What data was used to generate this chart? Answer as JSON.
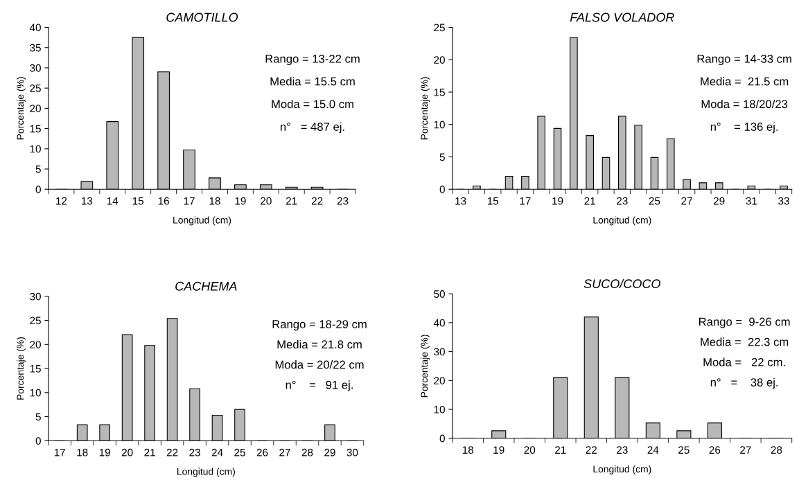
{
  "chart_data": [
    {
      "type": "bar",
      "title": "CAMOTILLO",
      "xlabel": "Longitud (cm)",
      "ylabel": "Porcentaje (%)",
      "categories": [
        "12",
        "13",
        "14",
        "15",
        "16",
        "17",
        "18",
        "19",
        "20",
        "21",
        "22",
        "23"
      ],
      "values": [
        0,
        1.9,
        16.7,
        37.5,
        29,
        9.7,
        2.8,
        1.1,
        1.1,
        0.5,
        0.5,
        0
      ],
      "color": "#b8b8b8",
      "ylim": [
        0,
        40
      ],
      "yticks": [
        0,
        5,
        10,
        15,
        20,
        25,
        30,
        35,
        40
      ],
      "grid": false,
      "annotations": [
        "Rango = 13-22 cm",
        "Media = 15.5 cm",
        "Moda = 15.0 cm",
        "n°   = 487 ej."
      ]
    },
    {
      "type": "bar",
      "title": "FALSO VOLADOR",
      "xlabel": "Longitud (cm)",
      "ylabel": "Porcentaje (%)",
      "categories": [
        "13",
        null,
        "15",
        null,
        "17",
        null,
        "19",
        null,
        "21",
        null,
        "23",
        null,
        "25",
        null,
        "27",
        null,
        "29",
        null,
        "31",
        null,
        "33"
      ],
      "values": [
        0,
        0.5,
        0,
        2,
        2,
        11.3,
        9.4,
        23.4,
        8.3,
        4.9,
        11.3,
        9.9,
        4.9,
        7.8,
        1.5,
        1,
        1,
        0,
        0.5,
        0,
        0.5
      ],
      "color": "#b8b8b8",
      "ylim": [
        0,
        25
      ],
      "yticks": [
        0,
        5,
        10,
        15,
        20,
        25
      ],
      "grid": false,
      "annotations": [
        "Rango = 14-33 cm",
        "Media =  21.5 cm",
        "Moda = 18/20/23",
        "n°    = 136 ej."
      ]
    },
    {
      "type": "bar",
      "title": "CACHEMA",
      "xlabel": "Longitud (cm)",
      "ylabel": "Porcentaje (%)",
      "categories": [
        "17",
        "18",
        "19",
        "20",
        "21",
        "22",
        "23",
        "24",
        "25",
        "26",
        "27",
        "28",
        "29",
        "30"
      ],
      "values": [
        0,
        3.3,
        3.3,
        22,
        19.8,
        25.4,
        10.8,
        5.3,
        6.5,
        0,
        0,
        0,
        3.3,
        0
      ],
      "color": "#b8b8b8",
      "ylim": [
        0,
        30
      ],
      "yticks": [
        0,
        5,
        10,
        15,
        20,
        25,
        30
      ],
      "grid": false,
      "annotations": [
        "Rango = 18-29 cm",
        "Media = 21.8 cm",
        "Moda = 20/22 cm",
        "n°    =   91 ej."
      ]
    },
    {
      "type": "bar",
      "title": "SUCO/COCO",
      "xlabel": "Longitud (cm)",
      "ylabel": "Porcentaje (%)",
      "categories": [
        "18",
        "19",
        "20",
        "21",
        "22",
        "23",
        "24",
        "25",
        "26",
        "27",
        "28"
      ],
      "values": [
        0,
        2.6,
        0,
        21,
        42,
        21,
        5.3,
        2.6,
        5.3,
        0,
        0
      ],
      "color": "#b8b8b8",
      "ylim": [
        0,
        50
      ],
      "yticks": [
        0,
        10,
        20,
        30,
        40,
        50
      ],
      "grid": false,
      "annotations": [
        "Rango =  9-26 cm",
        "Media =  22.3 cm",
        "Moda =   22 cm.",
        "n°   =    38 ej."
      ]
    }
  ]
}
